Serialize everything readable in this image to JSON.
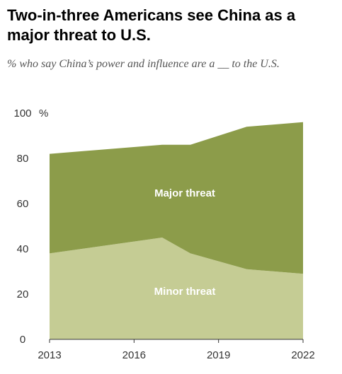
{
  "title": "Two-in-three Americans see China as a major threat to U.S.",
  "subtitle": "% who say China’s power and influence are a __ to the U.S.",
  "chart_data": {
    "type": "area",
    "stacked": true,
    "x": [
      2013,
      2017,
      2018,
      2020,
      2022
    ],
    "series": [
      {
        "name": "Minor threat",
        "values": [
          38,
          45,
          38,
          31,
          29
        ],
        "color": "#c5cc94"
      },
      {
        "name": "Major threat",
        "values": [
          44,
          41,
          48,
          63,
          67
        ],
        "color": "#8c9c4a"
      }
    ],
    "totals": [
      82,
      86,
      86,
      94,
      96
    ],
    "x_ticks": [
      "2013",
      "2016",
      "2019",
      "2022"
    ],
    "y_ticks": [
      "0",
      "20",
      "40",
      "60",
      "80",
      "100"
    ],
    "y_unit": "%",
    "ylim": [
      0,
      100
    ],
    "xlim": [
      2013,
      2022
    ],
    "title": "Two-in-three Americans see China as a major threat to U.S.",
    "subtitle": "% who say China’s power and influence are a __ to the U.S.",
    "grid": false
  }
}
